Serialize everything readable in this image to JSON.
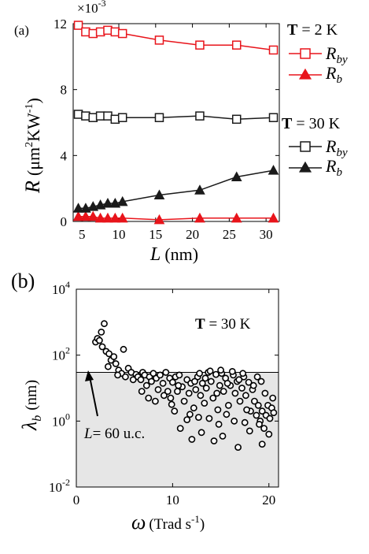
{
  "colors": {
    "red": "#e8141b",
    "black": "#1a1a1a",
    "shade": "#e6e6e6"
  },
  "chart_data": [
    {
      "type": "line",
      "panel_label": "(a)",
      "multiplier_label": "×10",
      "multiplier_exp": "-3",
      "ylabel": {
        "main": "R",
        "units": "(μm",
        "sup1": "2",
        "mid": "KW",
        "sup2": "-1",
        "close": ")"
      },
      "xlabel": {
        "main": "L",
        "units": "(nm)"
      },
      "xlim": [
        3.8,
        31.8
      ],
      "ylim": [
        0,
        0.012
      ],
      "xticks": [
        5,
        10,
        15,
        20,
        25,
        30
      ],
      "yticks": [
        0,
        0.004,
        0.008,
        0.012
      ],
      "ytick_labels": [
        "0",
        "4",
        "8",
        "12"
      ],
      "x": [
        4.5,
        5.5,
        6.5,
        7.5,
        8.5,
        9.5,
        10.5,
        15.5,
        21,
        26,
        31
      ],
      "series": [
        {
          "name": "R_by",
          "name_main": "R",
          "name_sub": "by",
          "group": "T = 2 K",
          "color": "red",
          "marker": "square",
          "values": [
            0.0119,
            0.0115,
            0.0114,
            0.0115,
            0.0116,
            0.0115,
            0.0114,
            0.011,
            0.0107,
            0.0107,
            0.0104
          ]
        },
        {
          "name": "R_b",
          "name_main": "R",
          "name_sub": "b",
          "group": "T = 2 K",
          "color": "red",
          "marker": "triangle",
          "values": [
            0.0003,
            0.0003,
            0.0003,
            0.0002,
            0.0002,
            0.0002,
            0.0002,
            0.0001,
            0.0002,
            0.0002,
            0.0002
          ]
        },
        {
          "name": "R_by",
          "name_main": "R",
          "name_sub": "by",
          "group": "T = 30 K",
          "color": "black",
          "marker": "square",
          "values": [
            0.0065,
            0.0064,
            0.0063,
            0.0064,
            0.0064,
            0.0062,
            0.0063,
            0.0063,
            0.0064,
            0.0062,
            0.0063
          ]
        },
        {
          "name": "R_b",
          "name_main": "R",
          "name_sub": "b",
          "group": "T = 30 K",
          "color": "black",
          "marker": "triangle",
          "values": [
            0.0008,
            0.0008,
            0.0009,
            0.001,
            0.0011,
            0.0011,
            0.0012,
            0.0016,
            0.0019,
            0.0027,
            0.0031
          ]
        }
      ],
      "legend_groups": [
        {
          "label": "T",
          "value": " = 2 K",
          "color": "red"
        },
        {
          "label": "T",
          "value": " = 30 K",
          "color": "black"
        }
      ]
    },
    {
      "type": "scatter",
      "panel_label": "(b)",
      "ylabel": {
        "main": "λ",
        "sub": "b",
        "units": "(nm)"
      },
      "xlabel": {
        "main": "ω",
        "units": "(Trad s",
        "sup": "-1",
        "close": ")"
      },
      "y_scale": "log",
      "xlim": [
        0,
        21
      ],
      "ylim": [
        0.01,
        10000
      ],
      "xticks": [
        0,
        10,
        20
      ],
      "yticks": [
        0.01,
        1,
        100,
        10000
      ],
      "ytick_base": "10",
      "ytick_exps": [
        "-2",
        "0",
        "2",
        "4"
      ],
      "shaded_below": 30,
      "annotation_temp": {
        "label": "T",
        "value": " = 30 K"
      },
      "annotation_L": {
        "main": "L",
        "value": "= 60 u.c.",
        "arrow_x": 1.3,
        "arrow_y": 40
      },
      "points": [
        [
          2.0,
          250
        ],
        [
          2.2,
          320
        ],
        [
          2.4,
          280
        ],
        [
          2.6,
          500
        ],
        [
          2.9,
          900
        ],
        [
          2.7,
          180
        ],
        [
          3.1,
          130
        ],
        [
          3.4,
          110
        ],
        [
          3.6,
          70
        ],
        [
          3.9,
          90
        ],
        [
          3.3,
          45
        ],
        [
          4.1,
          55
        ],
        [
          4.4,
          35
        ],
        [
          4.7,
          28
        ],
        [
          4.9,
          150
        ],
        [
          4.3,
          25
        ],
        [
          5.1,
          22
        ],
        [
          5.4,
          40
        ],
        [
          5.7,
          30
        ],
        [
          5.9,
          18
        ],
        [
          6.2,
          26
        ],
        [
          6.4,
          22
        ],
        [
          6.7,
          18
        ],
        [
          6.9,
          30
        ],
        [
          7.1,
          25
        ],
        [
          7.3,
          12
        ],
        [
          7.6,
          22
        ],
        [
          7.8,
          16
        ],
        [
          8.0,
          28
        ],
        [
          8.3,
          20
        ],
        [
          8.5,
          9
        ],
        [
          8.7,
          25
        ],
        [
          9.0,
          14
        ],
        [
          9.3,
          30
        ],
        [
          9.5,
          8
        ],
        [
          9.7,
          20
        ],
        [
          9.9,
          3.2
        ],
        [
          9.8,
          5
        ],
        [
          10.0,
          15
        ],
        [
          10.3,
          22
        ],
        [
          10.5,
          8
        ],
        [
          10.7,
          25
        ],
        [
          11.0,
          11
        ],
        [
          11.2,
          4
        ],
        [
          11.5,
          18
        ],
        [
          11.7,
          7
        ],
        [
          11.9,
          14
        ],
        [
          12.2,
          2.5
        ],
        [
          12.4,
          9
        ],
        [
          12.6,
          22
        ],
        [
          12.9,
          6
        ],
        [
          13.1,
          14
        ],
        [
          13.3,
          3.5
        ],
        [
          13.5,
          10
        ],
        [
          13.7,
          30
        ],
        [
          14.0,
          16
        ],
        [
          14.2,
          5
        ],
        [
          14.5,
          26
        ],
        [
          14.7,
          2.2
        ],
        [
          14.9,
          12
        ],
        [
          15.1,
          28
        ],
        [
          15.3,
          8
        ],
        [
          15.5,
          20
        ],
        [
          15.8,
          3
        ],
        [
          16.0,
          12
        ],
        [
          16.3,
          25
        ],
        [
          16.5,
          7
        ],
        [
          16.7,
          16
        ],
        [
          17.0,
          4
        ],
        [
          17.2,
          10
        ],
        [
          17.4,
          22
        ],
        [
          17.6,
          6
        ],
        [
          17.9,
          15
        ],
        [
          18.1,
          2
        ],
        [
          18.3,
          9
        ],
        [
          18.5,
          4
        ],
        [
          18.7,
          1.5
        ],
        [
          18.9,
          3
        ],
        [
          19.1,
          1
        ],
        [
          19.3,
          2
        ],
        [
          19.5,
          0.6
        ],
        [
          19.7,
          1.5
        ],
        [
          19.9,
          3
        ],
        [
          20.1,
          1.2
        ],
        [
          20.3,
          2.5
        ],
        [
          20.5,
          1.8
        ],
        [
          10.8,
          0.6
        ],
        [
          12.0,
          0.28
        ],
        [
          14.3,
          0.25
        ],
        [
          15.2,
          0.35
        ],
        [
          16.8,
          0.16
        ],
        [
          18.0,
          0.5
        ],
        [
          19.3,
          0.2
        ],
        [
          17.5,
          0.9
        ],
        [
          13.0,
          0.45
        ],
        [
          11.5,
          1.1
        ],
        [
          10.2,
          2
        ],
        [
          11.8,
          1.6
        ],
        [
          13.8,
          1.2
        ],
        [
          15.6,
          1.6
        ],
        [
          16.4,
          1
        ],
        [
          12.7,
          1.3
        ],
        [
          14.8,
          0.8
        ],
        [
          17.7,
          2.2
        ],
        [
          20.0,
          0.4
        ],
        [
          19.0,
          0.8
        ],
        [
          6.8,
          8
        ],
        [
          7.5,
          5
        ],
        [
          8.2,
          4
        ],
        [
          9.1,
          6
        ],
        [
          10.6,
          12
        ],
        [
          12.3,
          16
        ],
        [
          13.4,
          20
        ],
        [
          14.6,
          7
        ],
        [
          15.7,
          14
        ],
        [
          16.9,
          18
        ],
        [
          18.4,
          12
        ],
        [
          19.6,
          7
        ],
        [
          20.4,
          5
        ],
        [
          19.2,
          16
        ],
        [
          18.8,
          22
        ],
        [
          17.3,
          28
        ],
        [
          16.2,
          32
        ],
        [
          15.0,
          35
        ],
        [
          13.9,
          33
        ],
        [
          12.8,
          28
        ]
      ]
    }
  ]
}
